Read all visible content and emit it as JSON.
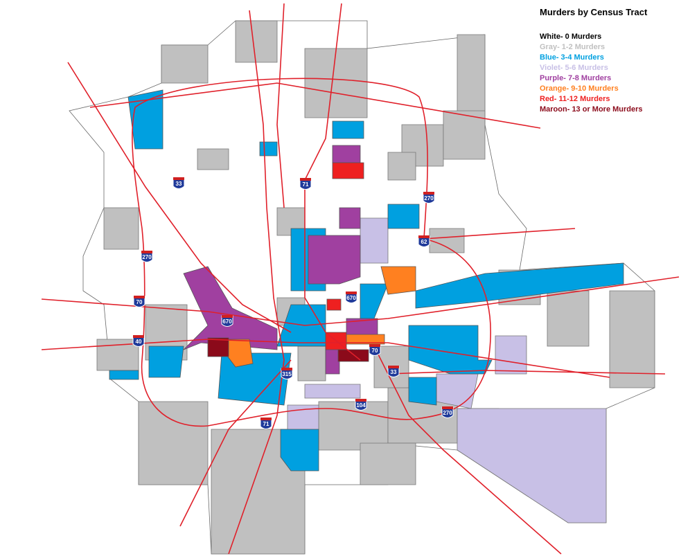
{
  "title": "Murders by Census Tract",
  "legend": [
    {
      "label": "White- 0 Murders",
      "color": "#000000"
    },
    {
      "label": "Gray- 1-2 Murders",
      "color": "#c0c0c0"
    },
    {
      "label": "Blue- 3-4 Murders",
      "color": "#00a0e0"
    },
    {
      "label": "Violet- 5-6 Murders",
      "color": "#c8c0e6"
    },
    {
      "label": "Purple- 7-8 Murders",
      "color": "#a040a0"
    },
    {
      "label": "Orange- 9-10 Murders",
      "color": "#ff8020"
    },
    {
      "label": "Red- 11-12 Murders",
      "color": "#ee2020"
    },
    {
      "label": "Maroon- 13 or More Murders",
      "color": "#8b0a1a"
    }
  ],
  "shields": [
    "33",
    "71",
    "270",
    "62",
    "270",
    "670",
    "70",
    "670",
    "40",
    "70",
    "315",
    "33",
    "71",
    "104",
    "270"
  ]
}
